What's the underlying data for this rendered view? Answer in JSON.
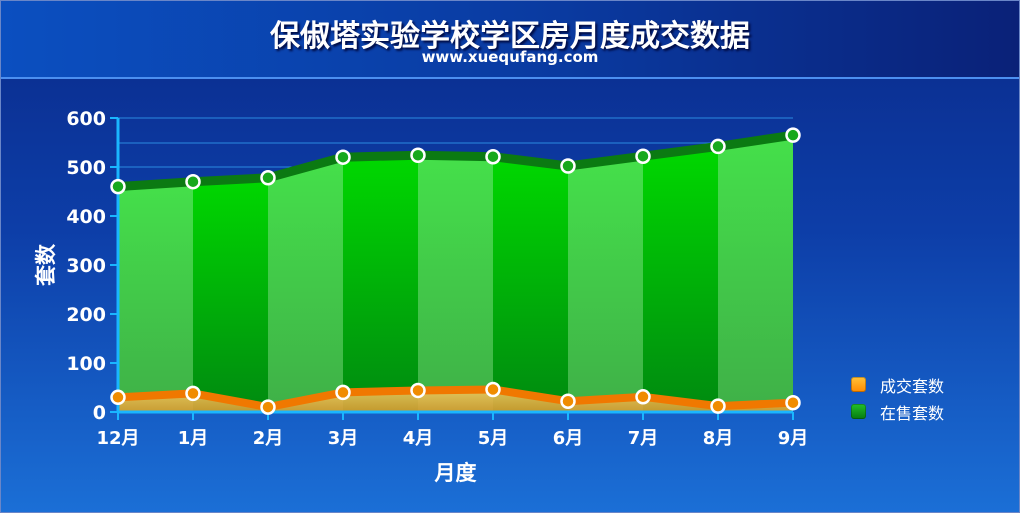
{
  "title": "保俶塔实验学校学区房月度成交数据",
  "subtitle": "www.xuequfang.com",
  "chart_data": {
    "type": "area",
    "categories": [
      "12月",
      "1月",
      "2月",
      "3月",
      "4月",
      "5月",
      "6月",
      "7月",
      "8月",
      "9月"
    ],
    "series": [
      {
        "name": "成交套数",
        "values": [
          30,
          38,
          10,
          40,
          44,
          46,
          22,
          31,
          12,
          19
        ],
        "color": "#ff9a00"
      },
      {
        "name": "在售套数",
        "values": [
          460,
          470,
          478,
          520,
          524,
          521,
          502,
          522,
          542,
          565
        ],
        "color": "#0c9e14"
      }
    ],
    "xlabel": "月度",
    "ylabel": "套数",
    "yticks": [
      0,
      100,
      200,
      300,
      400,
      500,
      600
    ],
    "ylim": [
      0,
      600
    ],
    "grid": true,
    "legend": "right"
  }
}
